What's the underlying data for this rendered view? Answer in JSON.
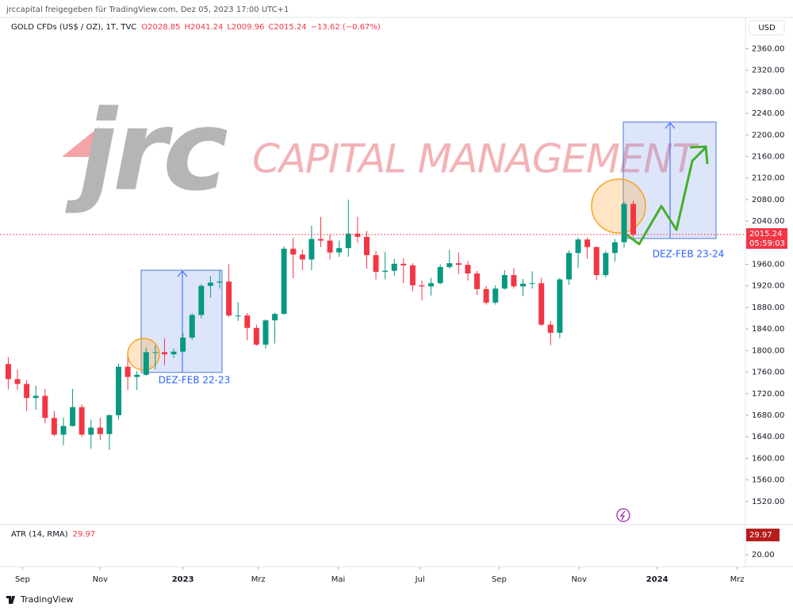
{
  "ui": {
    "shared_by": "jrccapital freigegeben für TradingView.com, Dez 05, 2023 17:00 UTC+1",
    "currency": "USD",
    "logo": "TradingView",
    "watermark_logo": "jrc",
    "watermark_text": "CAPITAL MANAGEMENT",
    "annotation_1": "DEZ-FEB 22-23",
    "annotation_2": "DEZ-FEB 23-24"
  },
  "chart_data": [
    {
      "type": "candlestick",
      "title": "GOLD CFDs (US$ / OZ), 1T, TVC",
      "legend_values": [
        "O2028.85",
        "H2041.24",
        "L2009.96",
        "C2015.24",
        "−13.62 (−0.67%)"
      ],
      "last_price": 2015.24,
      "countdown": "05:59:03",
      "up_color": "#089981",
      "down_color": "#f23645",
      "xlim": [
        -0.9,
        80.2
      ],
      "xticks": [
        {
          "value": 1.55,
          "label": "Sep"
        },
        {
          "value": 10,
          "label": "Nov"
        },
        {
          "value": 19,
          "label": "2023"
        },
        {
          "value": 27.2,
          "label": "Mrz"
        },
        {
          "value": 35.9,
          "label": "Mai"
        },
        {
          "value": 44.8,
          "label": "Jul"
        },
        {
          "value": 53.4,
          "label": "Sep"
        },
        {
          "value": 62.1,
          "label": "Nov"
        },
        {
          "value": 70.6,
          "label": "2024"
        },
        {
          "value": 79.3,
          "label": "Mrz"
        }
      ],
      "ylim": [
        1480,
        2418
      ],
      "yticks": [
        {
          "value": 1520,
          "label": "1520.00"
        },
        {
          "value": 1560,
          "label": "1560.00"
        },
        {
          "value": 1600,
          "label": "1600.00"
        },
        {
          "value": 1640,
          "label": "1640.00"
        },
        {
          "value": 1680,
          "label": "1680.00"
        },
        {
          "value": 1720,
          "label": "1720.00"
        },
        {
          "value": 1760,
          "label": "1760.00"
        },
        {
          "value": 1800,
          "label": "1800.00"
        },
        {
          "value": 1840,
          "label": "1840.00"
        },
        {
          "value": 1880,
          "label": "1880.00"
        },
        {
          "value": 1920,
          "label": "1920.00"
        },
        {
          "value": 1960,
          "label": "1960.00"
        },
        {
          "value": 2000,
          "label": "2000.00"
        },
        {
          "value": 2040,
          "label": "2040.00"
        },
        {
          "value": 2080,
          "label": "2080.00"
        },
        {
          "value": 2120,
          "label": "2120.00"
        },
        {
          "value": 2160,
          "label": "2160.00"
        },
        {
          "value": 2200,
          "label": "2200.00"
        },
        {
          "value": 2240,
          "label": "2240.00"
        },
        {
          "value": 2280,
          "label": "2280.00"
        },
        {
          "value": 2320,
          "label": "2320.00"
        },
        {
          "value": 2360,
          "label": "2360.00"
        }
      ],
      "open": [
        1775,
        1747,
        1738,
        1712,
        1716,
        1675,
        1644,
        1660,
        1695,
        1644,
        1657,
        1645,
        1680,
        1770,
        1751,
        1755,
        1797,
        1797,
        1793,
        1798,
        1824,
        1866,
        1920,
        1926,
        1928,
        1865,
        1865,
        1842,
        1811,
        1856,
        1868,
        1989,
        1978,
        1969,
        2007,
        2004,
        1982,
        1990,
        2017,
        2011,
        1977,
        1946,
        1948,
        1961,
        1958,
        1921,
        1919,
        1925,
        1955,
        1962,
        1959,
        1943,
        1914,
        1889,
        1915,
        1940,
        1919,
        1924,
        1925,
        1848,
        1833,
        1932,
        1981,
        2006,
        1992,
        1940,
        1981,
        2001,
        2072
      ],
      "high": [
        1788,
        1765,
        1745,
        1735,
        1729,
        1688,
        1676,
        1729,
        1700,
        1672,
        1675,
        1682,
        1776,
        1787,
        1762,
        1805,
        1810,
        1823,
        1804,
        1833,
        1869,
        1923,
        1938,
        1949,
        1960,
        1890,
        1870,
        1848,
        1858,
        1870,
        1993,
        2009,
        1987,
        2032,
        2048,
        2015,
        2004,
        2080,
        2048,
        2022,
        1985,
        1983,
        1970,
        1971,
        1962,
        1930,
        1935,
        1960,
        1987,
        1982,
        1966,
        1948,
        1920,
        1921,
        1949,
        1953,
        1933,
        1947,
        1935,
        1855,
        1935,
        1986,
        2009,
        2010,
        1993,
        1985,
        2007,
        2075,
        2078
      ],
      "low": [
        1728,
        1727,
        1688,
        1690,
        1665,
        1641,
        1624,
        1659,
        1640,
        1618,
        1634,
        1616,
        1672,
        1727,
        1727,
        1753,
        1765,
        1773,
        1786,
        1797,
        1820,
        1860,
        1898,
        1915,
        1862,
        1855,
        1819,
        1809,
        1804,
        1813,
        1867,
        1934,
        1949,
        1949,
        1992,
        1969,
        1974,
        1974,
        2000,
        1952,
        1932,
        1932,
        1939,
        1925,
        1910,
        1893,
        1902,
        1923,
        1952,
        1942,
        1930,
        1903,
        1885,
        1885,
        1913,
        1915,
        1901,
        1915,
        1846,
        1810,
        1823,
        1922,
        1953,
        1970,
        1931,
        1936,
        1965,
        1991,
        2010
      ],
      "close": [
        1747,
        1738,
        1712,
        1716,
        1675,
        1644,
        1660,
        1695,
        1644,
        1657,
        1645,
        1680,
        1770,
        1751,
        1755,
        1797,
        1797,
        1793,
        1798,
        1824,
        1866,
        1920,
        1926,
        1928,
        1865,
        1865,
        1842,
        1811,
        1856,
        1868,
        1989,
        1978,
        1969,
        2007,
        2004,
        1982,
        1990,
        2017,
        2011,
        1977,
        1946,
        1948,
        1961,
        1958,
        1921,
        1919,
        1925,
        1955,
        1962,
        1959,
        1943,
        1914,
        1889,
        1915,
        1940,
        1919,
        1924,
        1925,
        1848,
        1833,
        1932,
        1981,
        2006,
        1992,
        1940,
        1981,
        2001,
        2072,
        2015
      ]
    },
    {
      "type": "indicator",
      "title": "ATR (14, RMA)",
      "last_value": 29.97,
      "color": "#f23645",
      "ylim": [
        14,
        35.2
      ],
      "yticks": [
        {
          "value": 20,
          "label": "20.00"
        }
      ]
    }
  ]
}
